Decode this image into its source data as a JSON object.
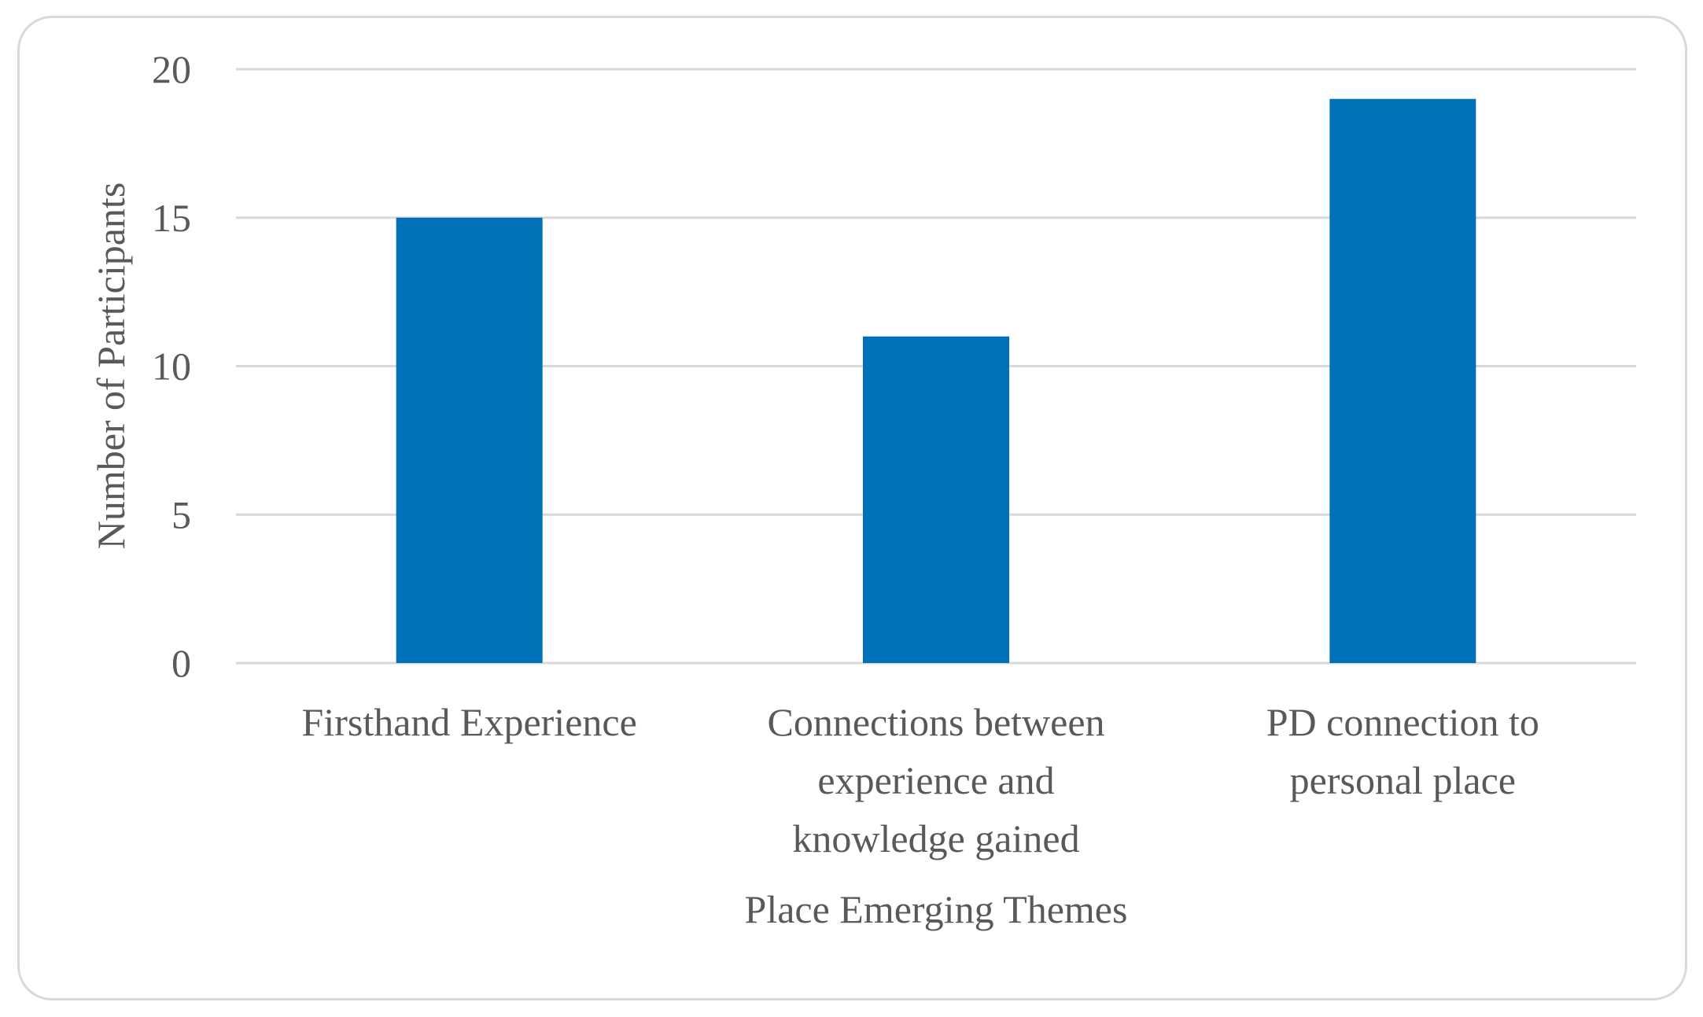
{
  "chart_data": {
    "type": "bar",
    "title": "",
    "categories": [
      "Firsthand Experience",
      "Connections between experience and knowledge gained",
      "PD connection to personal place"
    ],
    "category_lines": [
      [
        "Firsthand Experience"
      ],
      [
        "Connections between",
        "experience and",
        "knowledge gained"
      ],
      [
        "PD connection to",
        "personal place"
      ]
    ],
    "series": [
      {
        "name": "Number of Participants",
        "values": [
          15,
          11,
          19
        ]
      }
    ],
    "xlabel": "Place Emerging Themes",
    "ylabel": "Number of Participants",
    "ylim": [
      0,
      20
    ],
    "yticks": [
      0,
      5,
      10,
      15,
      20
    ],
    "grid": true,
    "legend": "none",
    "colors": {
      "bar": "#0070b8",
      "grid": "#d9d9d9",
      "text": "#595959"
    }
  }
}
